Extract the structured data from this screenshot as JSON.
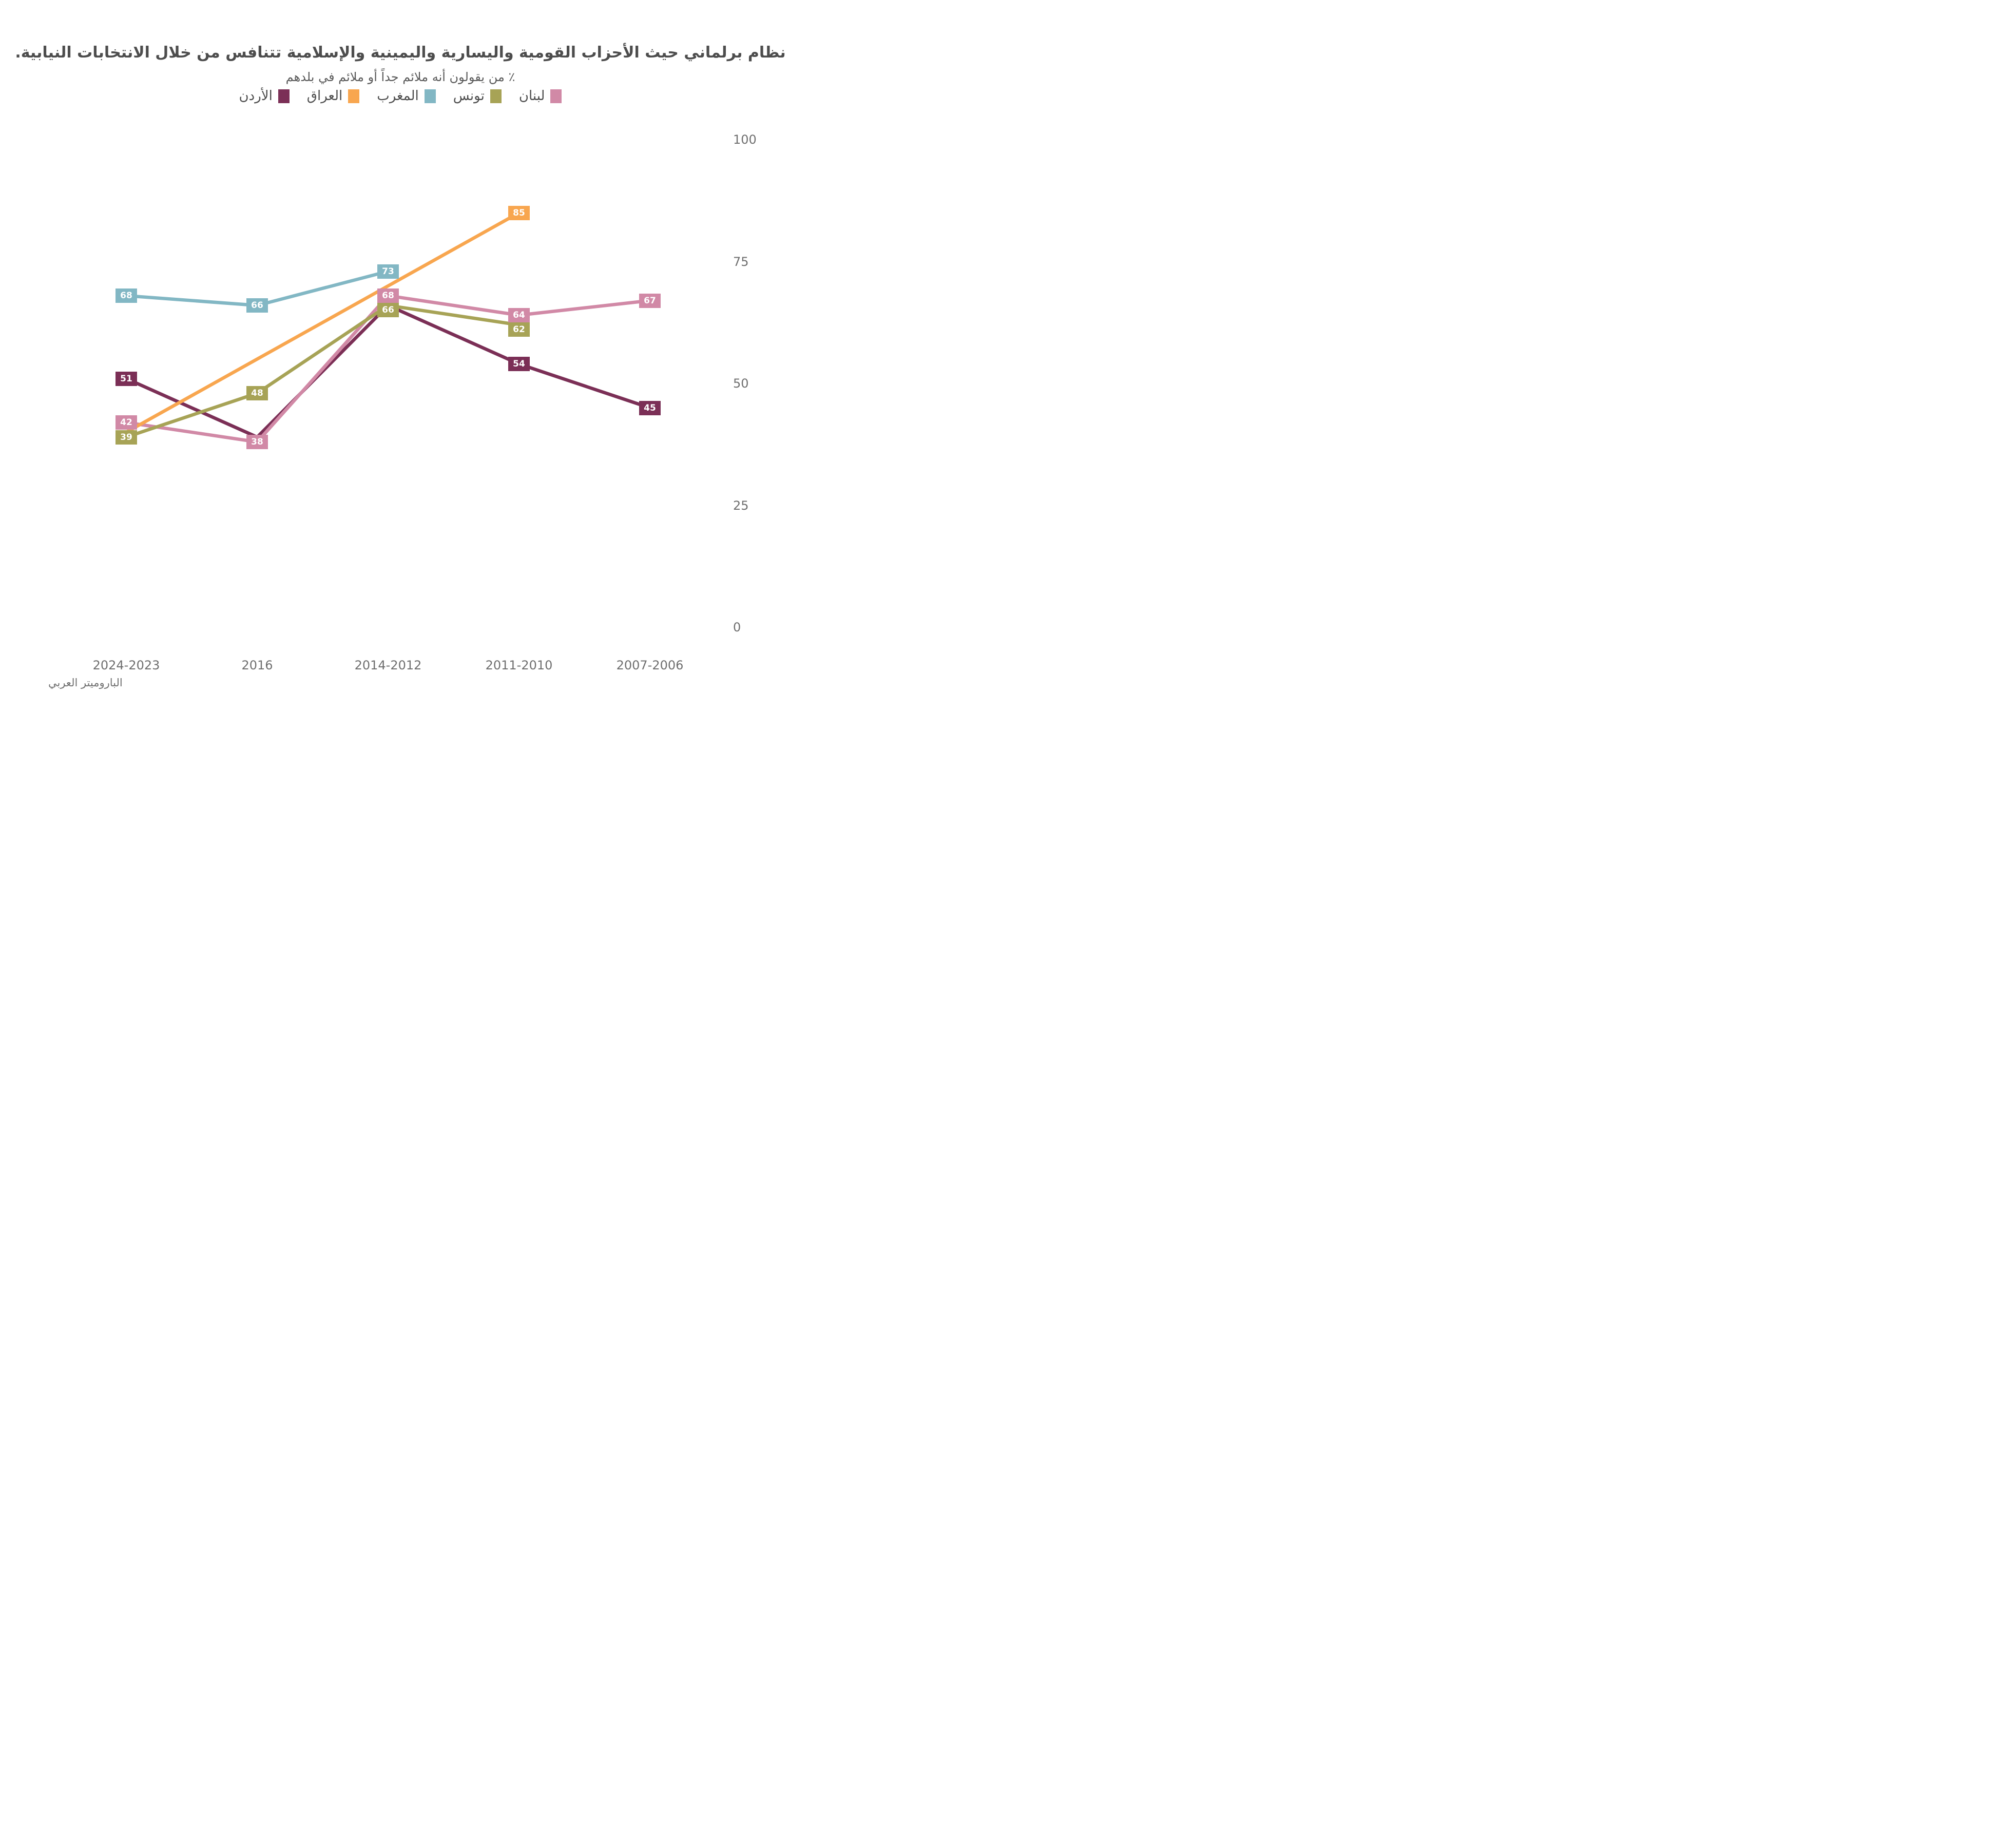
{
  "header": {
    "title": "نظام برلماني حيث الأحزاب القومية واليسارية واليمينية والإسلامية تتنافس من خلال الانتخابات النيابية.",
    "subtitle": "٪ من يقولون أنه ملائم جداً أو ملائم في بلدهم"
  },
  "source": "الباروميتر العربي",
  "chart_data": {
    "type": "line",
    "direction": "rtl",
    "grid": false,
    "legend_position": "top",
    "categories": [
      "2024-2023",
      "2016",
      "2014-2012",
      "2011-2010",
      "2007-2006"
    ],
    "y_axis": {
      "min": 0,
      "max": 100,
      "ticks": [
        100,
        75,
        50,
        25,
        0
      ],
      "side": "right"
    },
    "series": [
      {
        "id": "lebanon",
        "name": "لبنان",
        "color": "#D189A6",
        "points": [
          {
            "category_index": 0,
            "value": 42,
            "labeled": true
          },
          {
            "category_index": 1,
            "value": 38,
            "labeled": true
          },
          {
            "category_index": 2,
            "value": 68,
            "labeled": true
          },
          {
            "category_index": 3,
            "value": 64,
            "labeled": true
          },
          {
            "category_index": 4,
            "value": 67,
            "labeled": true
          }
        ]
      },
      {
        "id": "tunisia",
        "name": "تونس",
        "color": "#A7A356",
        "points": [
          {
            "category_index": 0,
            "value": 39,
            "labeled": true
          },
          {
            "category_index": 1,
            "value": 48,
            "labeled": true
          },
          {
            "category_index": 2,
            "value": 66,
            "labeled": true
          },
          {
            "category_index": 3,
            "value": 62,
            "labeled": true
          }
        ]
      },
      {
        "id": "morocco",
        "name": "المغرب",
        "color": "#82B7C4",
        "points": [
          {
            "category_index": 0,
            "value": 68,
            "labeled": true
          },
          {
            "category_index": 1,
            "value": 66,
            "labeled": true
          },
          {
            "category_index": 2,
            "value": 73,
            "labeled": true
          }
        ]
      },
      {
        "id": "iraq",
        "name": "العراق",
        "color": "#F8A64F",
        "points": [
          {
            "category_index": 0,
            "value": 40,
            "labeled": false
          },
          {
            "category_index": 3,
            "value": 85,
            "labeled": true
          }
        ]
      },
      {
        "id": "jordan",
        "name": "الأردن",
        "color": "#7B2F56",
        "points": [
          {
            "category_index": 0,
            "value": 51,
            "labeled": true
          },
          {
            "category_index": 1,
            "value": 39,
            "labeled": false
          },
          {
            "category_index": 2,
            "value": 66,
            "labeled": false
          },
          {
            "category_index": 3,
            "value": 54,
            "labeled": true
          },
          {
            "category_index": 4,
            "value": 45,
            "labeled": true
          }
        ]
      }
    ]
  }
}
